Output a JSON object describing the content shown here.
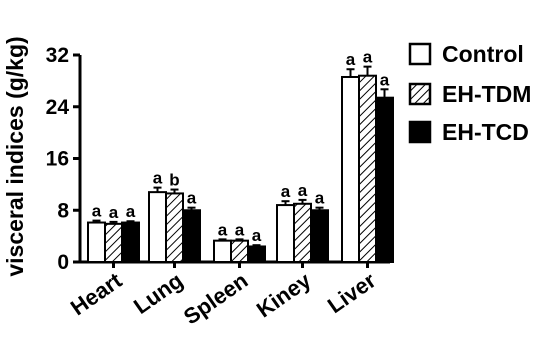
{
  "chart_data": {
    "type": "bar",
    "ylabel": "visceral indices (g/kg)",
    "ylim": [
      0,
      32
    ],
    "yticks": [
      0,
      8,
      16,
      24,
      32
    ],
    "categories": [
      "Heart",
      "Lung",
      "Spleen",
      "Kiney",
      "Liver"
    ],
    "series": [
      {
        "name": "Control",
        "fill": "#ffffff",
        "pattern": "none",
        "values": [
          6.1,
          10.8,
          3.3,
          8.8,
          28.6
        ],
        "errors": [
          0.3,
          0.7,
          0.2,
          0.6,
          1.2
        ],
        "labels": [
          "a",
          "a",
          "a",
          "a",
          "a"
        ]
      },
      {
        "name": "EH-TDM",
        "fill": "#ffffff",
        "pattern": "hatch",
        "values": [
          5.9,
          10.6,
          3.3,
          9.0,
          28.8
        ],
        "errors": [
          0.3,
          0.6,
          0.2,
          0.6,
          1.4
        ],
        "labels": [
          "a",
          "b",
          "a",
          "a",
          "a"
        ]
      },
      {
        "name": "EH-TCD",
        "fill": "#000000",
        "pattern": "solid",
        "values": [
          6.1,
          8.0,
          2.4,
          8.0,
          25.4
        ],
        "errors": [
          0.2,
          0.4,
          0.2,
          0.4,
          1.3
        ],
        "labels": [
          "a",
          "a",
          "a",
          "a",
          "a"
        ]
      }
    ],
    "legend": "top-right",
    "grid": false
  }
}
